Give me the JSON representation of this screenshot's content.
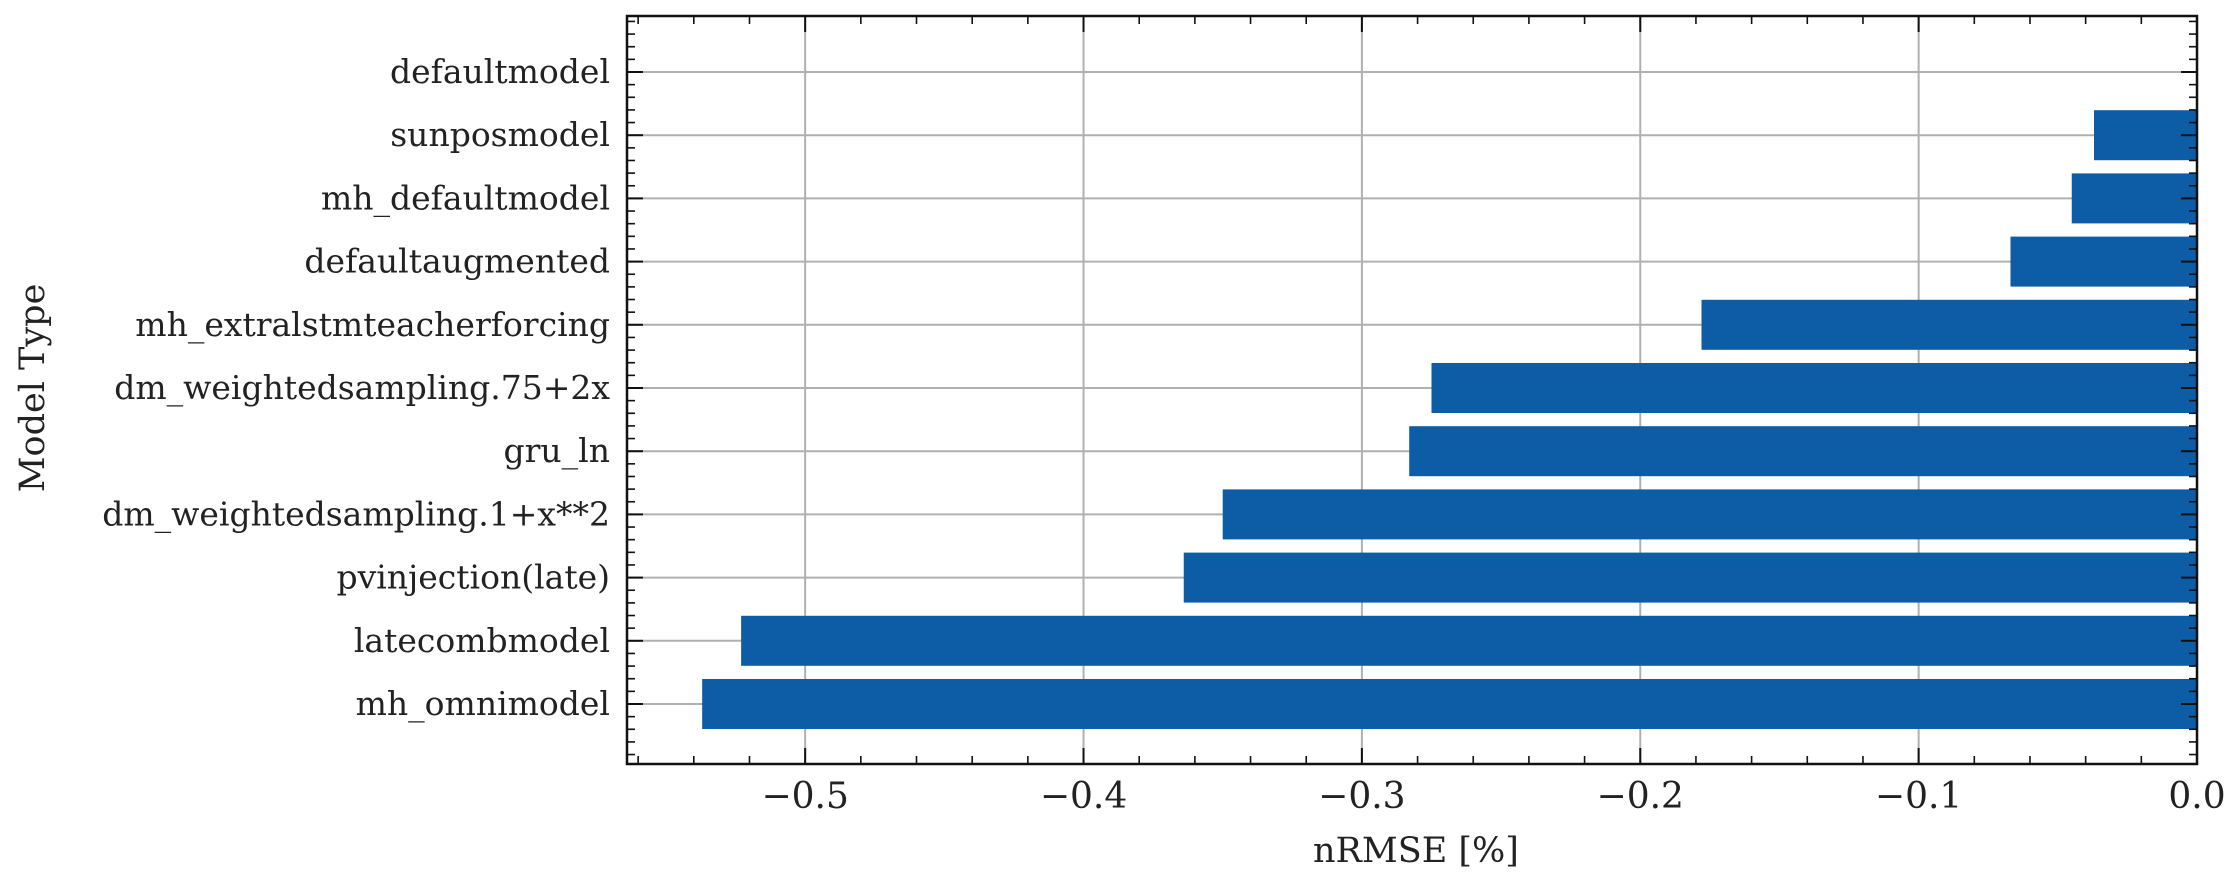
{
  "chart_data": {
    "type": "bar",
    "orientation": "horizontal",
    "categories": [
      "defaultmodel",
      "sunposmodel",
      "mh_defaultmodel",
      "defaultaugmented",
      "mh_extralstmteacherforcing",
      "dm_weightedsampling.75+2x",
      "gru_ln",
      "dm_weightedsampling.1+x**2",
      "pvinjection(late)",
      "latecombmodel",
      "mh_omnimodel"
    ],
    "values": [
      0.0,
      -0.037,
      -0.045,
      -0.067,
      -0.178,
      -0.275,
      -0.283,
      -0.35,
      -0.364,
      -0.523,
      -0.537
    ],
    "xlabel": "nRMSE [%]",
    "ylabel": "Model Type",
    "xlim": [
      -0.564,
      0.0
    ],
    "xticks": [
      -0.5,
      -0.4,
      -0.3,
      -0.2,
      -0.1,
      0.0
    ],
    "xtick_labels": [
      "−0.5",
      "−0.4",
      "−0.3",
      "−0.2",
      "−0.1",
      "0.0"
    ],
    "grid": true,
    "bar_color": "#0c5da5",
    "grid_color": "#b0b0b0"
  }
}
